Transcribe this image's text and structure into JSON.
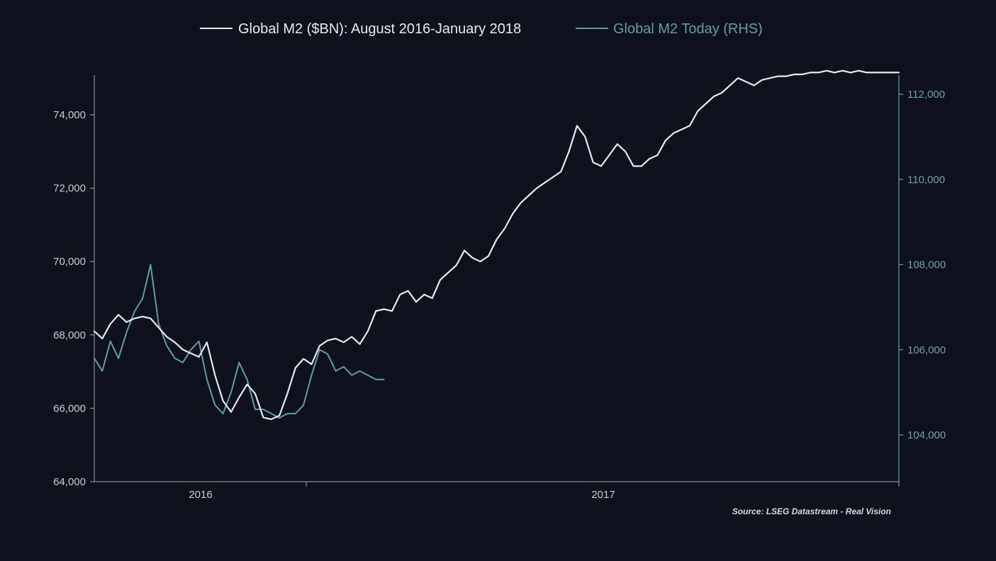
{
  "colors": {
    "background": "#0f111d",
    "primary_line": "#e8e8ec",
    "secondary_line": "#5e9ea3",
    "axis": "#8a8d97",
    "left_tick_text": "#c9cad0",
    "right_tick_text": "#6aa3a8"
  },
  "chart_data": {
    "type": "line",
    "title": "",
    "source": "Source: LSEG Datastream - Real Vision",
    "legend_position": "top-center",
    "x_ticks": [
      "2016",
      "2017"
    ],
    "y_left": {
      "ticks": [
        "64,000",
        "66,000",
        "68,000",
        "70,000",
        "72,000",
        "74,000"
      ],
      "tick_values": [
        64000,
        66000,
        68000,
        70000,
        72000,
        74000
      ],
      "ylim": [
        64000,
        75200
      ]
    },
    "y_right": {
      "ticks": [
        "104,000",
        "106,000",
        "108,000",
        "110,000",
        "112,000"
      ],
      "tick_values": [
        104000,
        106000,
        108000,
        110000,
        112000
      ],
      "ylim": [
        102900,
        112500
      ]
    },
    "series": [
      {
        "name": "Global M2 ($BN): August 2016-January 2018",
        "axis": "left",
        "color_key": "primary_line",
        "x": [
          0.0,
          0.01,
          0.02,
          0.03,
          0.04,
          0.05,
          0.06,
          0.07,
          0.08,
          0.09,
          0.1,
          0.11,
          0.12,
          0.13,
          0.14,
          0.15,
          0.16,
          0.17,
          0.18,
          0.19,
          0.2,
          0.21,
          0.22,
          0.23,
          0.24,
          0.25,
          0.26,
          0.27,
          0.28,
          0.29,
          0.3,
          0.31,
          0.32,
          0.33,
          0.34,
          0.35,
          0.36,
          0.37,
          0.38,
          0.39,
          0.4,
          0.41,
          0.42,
          0.43,
          0.44,
          0.45,
          0.46,
          0.47,
          0.48,
          0.49,
          0.5,
          0.51,
          0.52,
          0.53,
          0.54,
          0.55,
          0.56,
          0.57,
          0.58,
          0.59,
          0.6,
          0.61,
          0.62,
          0.63,
          0.64,
          0.65,
          0.66,
          0.67,
          0.68,
          0.69,
          0.7,
          0.71,
          0.72,
          0.73,
          0.74,
          0.75,
          0.76,
          0.77,
          0.78,
          0.79,
          0.8,
          0.81,
          0.82,
          0.83,
          0.84,
          0.85,
          0.86,
          0.87,
          0.88,
          0.89,
          0.9,
          0.91,
          0.92,
          0.93,
          0.94,
          0.95,
          0.96,
          0.97,
          0.98,
          0.99,
          1.0
        ],
        "values": [
          68100,
          67900,
          68300,
          68550,
          68350,
          68450,
          68500,
          68450,
          68200,
          67950,
          67800,
          67600,
          67500,
          67400,
          67800,
          66900,
          66200,
          65900,
          66300,
          66650,
          66400,
          65750,
          65700,
          65800,
          66400,
          67100,
          67350,
          67200,
          67700,
          67850,
          67900,
          67800,
          67950,
          67750,
          68100,
          68650,
          68700,
          68650,
          69100,
          69200,
          68900,
          69100,
          69000,
          69500,
          69700,
          69900,
          70300,
          70100,
          70000,
          70150,
          70600,
          70900,
          71300,
          71600,
          71800,
          72000,
          72150,
          72300,
          72450,
          73000,
          73700,
          73400,
          72700,
          72600,
          72900,
          73200,
          73000,
          72600,
          72600,
          72800,
          72900,
          73300,
          73500,
          73600,
          73700,
          74100,
          74300,
          74500,
          74600,
          74800,
          75000,
          74900,
          74800,
          74950,
          75000,
          75050,
          75050,
          75100,
          75100,
          75150,
          75150,
          75200,
          75150,
          75200,
          75150,
          75200,
          75150,
          75150,
          75150,
          75150,
          75150
        ],
        "values_display_end_index": 100
      },
      {
        "name": "Global M2 Today (RHS)",
        "axis": "right",
        "color_key": "secondary_line",
        "x": [
          0.0,
          0.01,
          0.02,
          0.03,
          0.04,
          0.05,
          0.06,
          0.07,
          0.08,
          0.09,
          0.1,
          0.11,
          0.12,
          0.13,
          0.14,
          0.15,
          0.16,
          0.17,
          0.18,
          0.19,
          0.2,
          0.21,
          0.22,
          0.23,
          0.24,
          0.25,
          0.26,
          0.27,
          0.28,
          0.29,
          0.3,
          0.31,
          0.32,
          0.33,
          0.34,
          0.35,
          0.36
        ],
        "values": [
          105800,
          105500,
          106200,
          105800,
          106400,
          106900,
          107200,
          108000,
          106600,
          106100,
          105800,
          105700,
          106000,
          106200,
          105300,
          104700,
          104500,
          105000,
          105700,
          105300,
          104600,
          104600,
          104500,
          104400,
          104500,
          104500,
          104700,
          105400,
          106000,
          105900,
          105500,
          105600,
          105400,
          105500,
          105400,
          105300,
          105300
        ]
      }
    ]
  }
}
